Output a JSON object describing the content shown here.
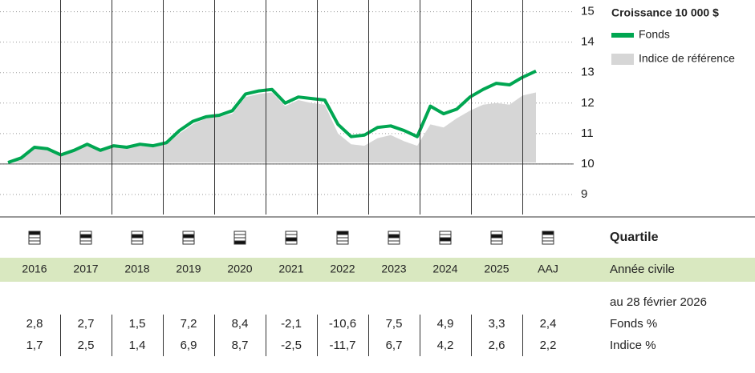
{
  "chart_data": {
    "type": "line",
    "title": "Croissance 10 000 $",
    "series": [
      {
        "name": "Fonds",
        "color": "#00a651",
        "values": [
          10.05,
          10.2,
          10.55,
          10.5,
          10.3,
          10.45,
          10.65,
          10.45,
          10.6,
          10.55,
          10.65,
          10.6,
          10.7,
          11.1,
          11.4,
          11.55,
          11.6,
          11.75,
          12.3,
          12.4,
          12.45,
          12.0,
          12.2,
          12.15,
          12.1,
          11.3,
          10.9,
          10.95,
          11.2,
          11.25,
          11.1,
          10.9,
          11.9,
          11.65,
          11.8,
          12.2,
          12.45,
          12.65,
          12.6,
          12.85,
          13.05
        ]
      },
      {
        "name": "Indice de référence",
        "color": "#d6d6d6",
        "style": "area",
        "values": [
          10.05,
          10.15,
          10.5,
          10.45,
          10.25,
          10.4,
          10.6,
          10.45,
          10.55,
          10.5,
          10.6,
          10.55,
          10.65,
          11.0,
          11.3,
          11.5,
          11.55,
          11.65,
          12.2,
          12.3,
          12.35,
          11.9,
          12.1,
          12.0,
          11.95,
          11.0,
          10.65,
          10.6,
          10.85,
          10.95,
          10.75,
          10.6,
          11.3,
          11.2,
          11.5,
          11.75,
          11.95,
          12.0,
          11.95,
          12.25,
          12.35
        ]
      }
    ],
    "ylim": [
      8.5,
      15.2
    ],
    "yticks": [
      9,
      10,
      11,
      12,
      13,
      14,
      15
    ],
    "grid": true
  },
  "table": {
    "quartile_label": "Quartile",
    "columns": [
      "2016",
      "2017",
      "2018",
      "2019",
      "2020",
      "2021",
      "2022",
      "2023",
      "2024",
      "2025",
      "AAJ"
    ],
    "quartiles": [
      1,
      2,
      2,
      2,
      4,
      3,
      1,
      2,
      3,
      2,
      1
    ],
    "period_label": "Année civile",
    "date_label": "au 28 février 2026",
    "rows": [
      {
        "label": "Fonds %",
        "values": [
          "2,8",
          "2,7",
          "1,5",
          "7,2",
          "8,4",
          "-2,1",
          "-10,6",
          "7,5",
          "4,9",
          "3,3",
          "2,4"
        ]
      },
      {
        "label": "Indice %",
        "values": [
          "1,7",
          "2,5",
          "1,4",
          "6,9",
          "8,7",
          "-2,5",
          "-11,7",
          "6,7",
          "4,2",
          "2,6",
          "2,2"
        ]
      }
    ]
  }
}
